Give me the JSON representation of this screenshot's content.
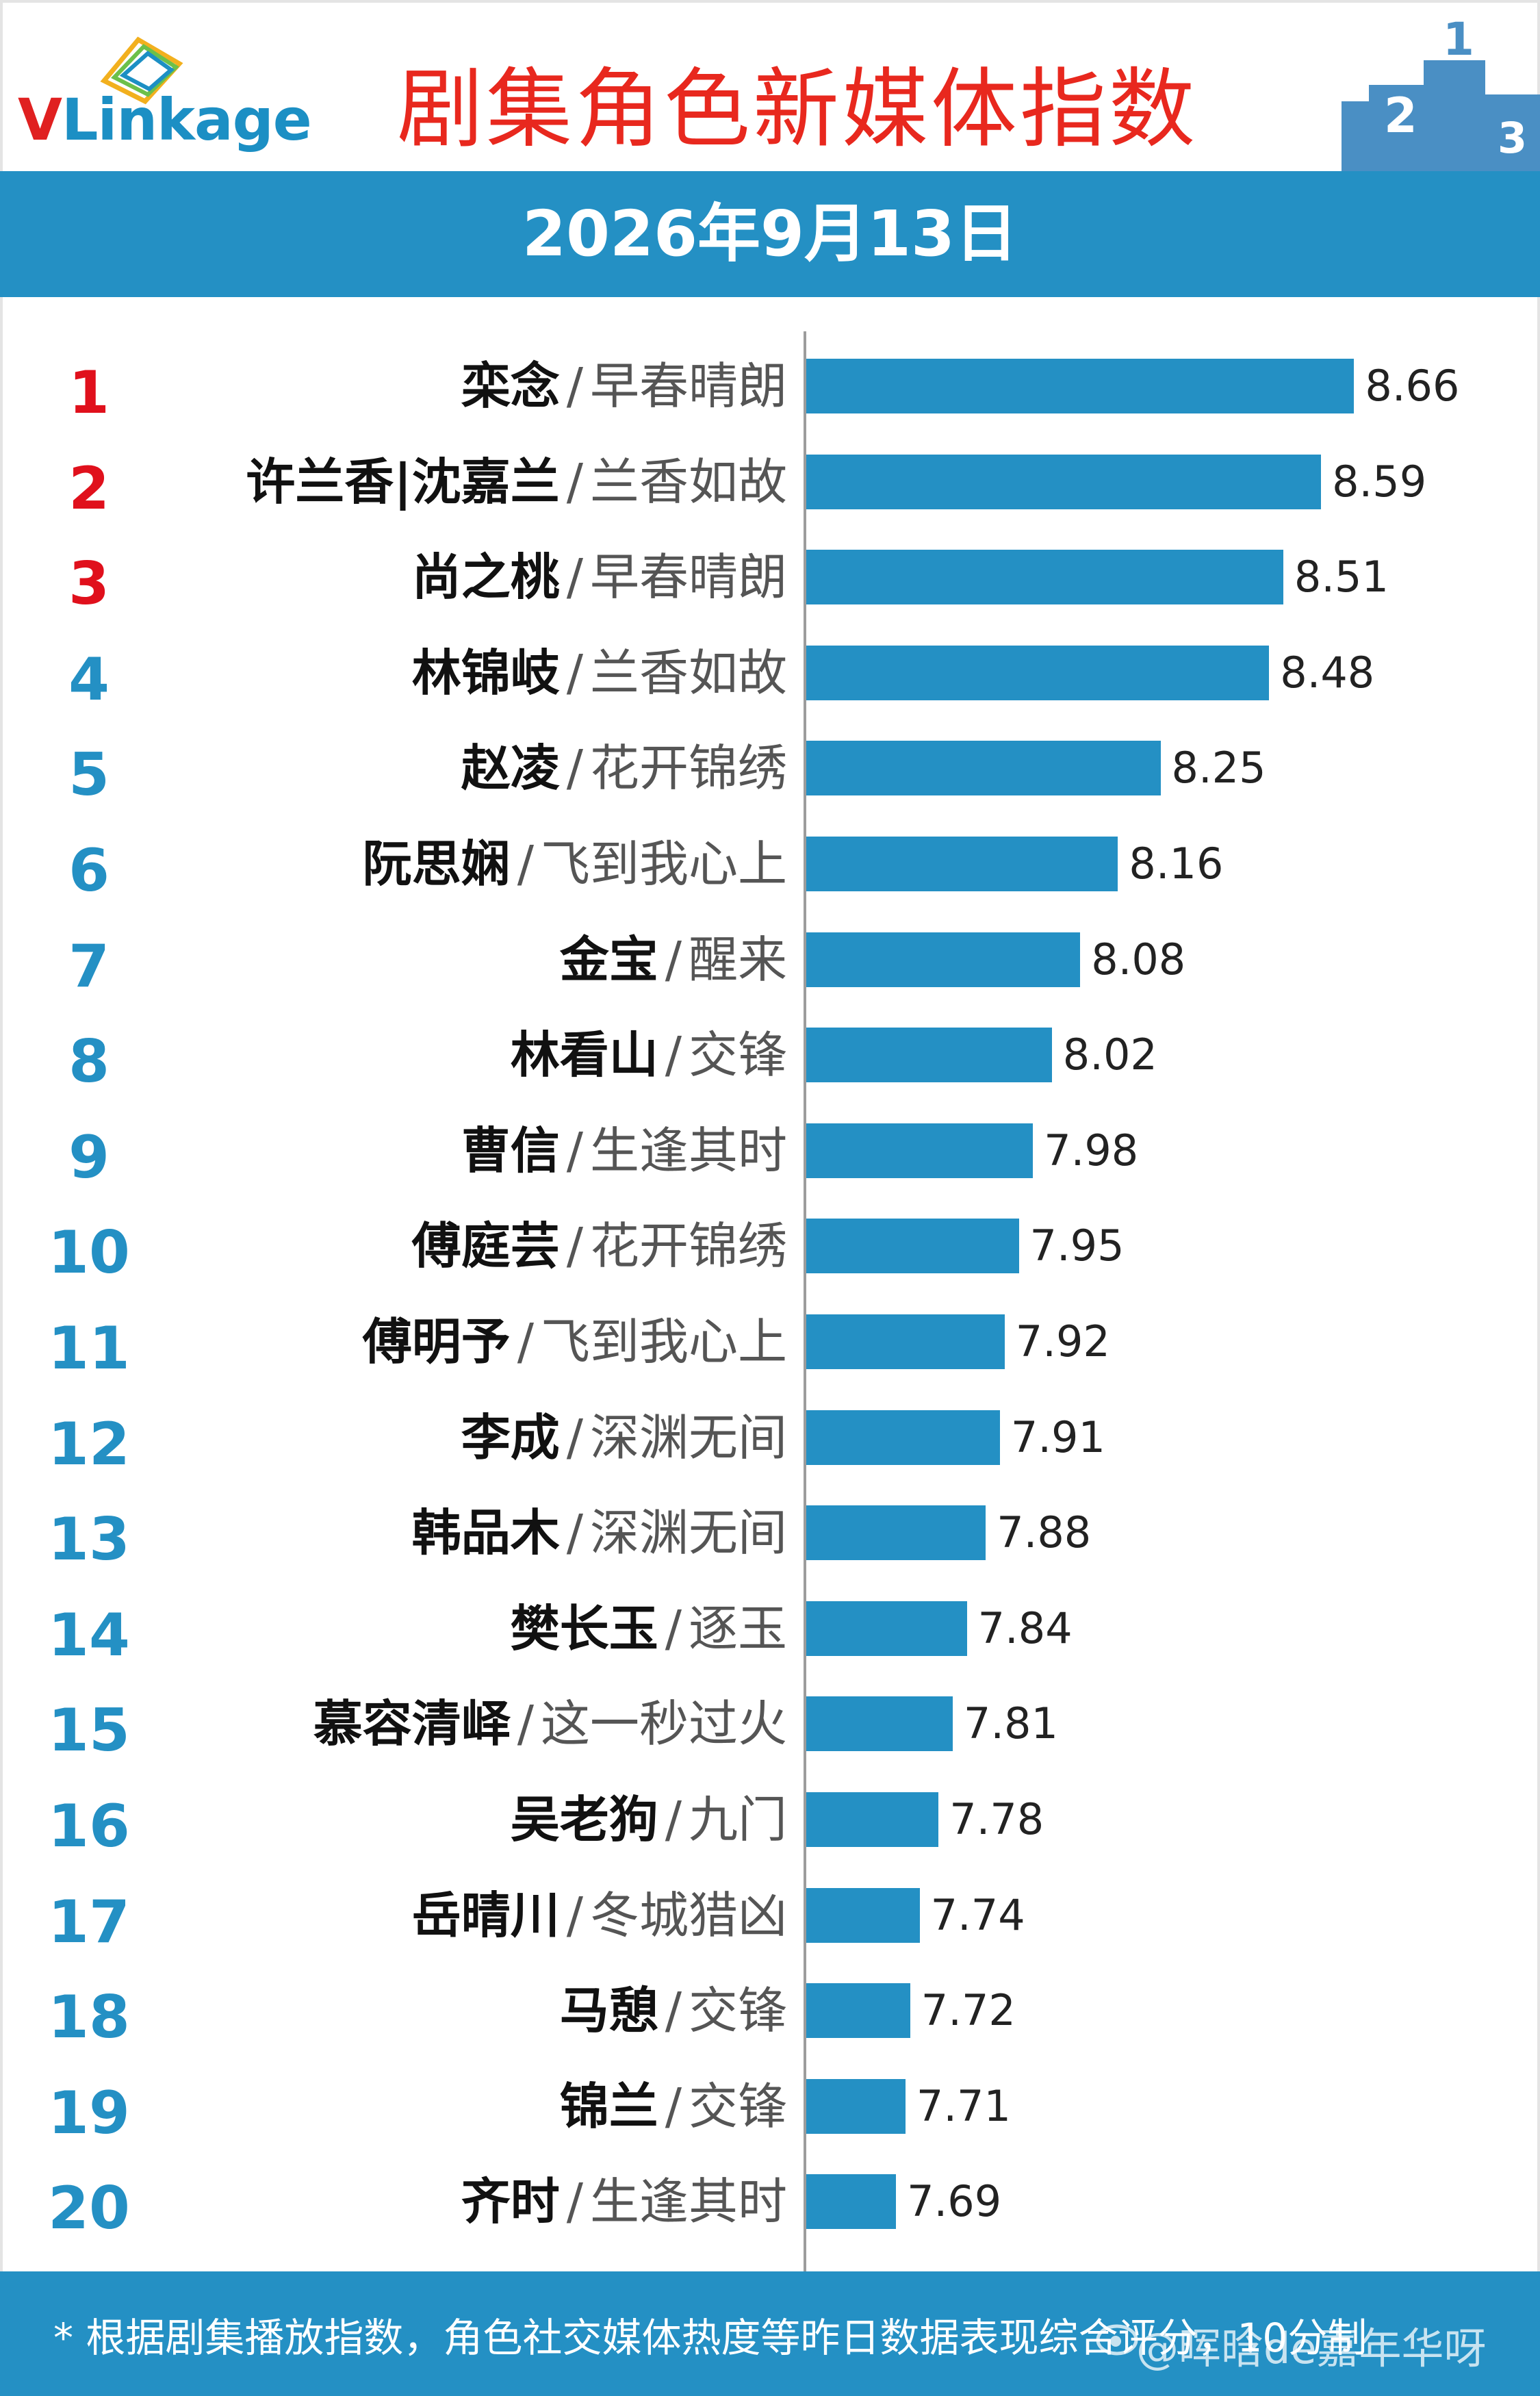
{
  "header": {
    "logo_text": "VLinkage",
    "title": "剧集角色新媒体指数",
    "date": "2026年9月13日"
  },
  "footer": {
    "note": "* 根据剧集播放指数，角色社交媒体热度等昨日数据表现综合评分，10分制",
    "watermark": "@晖晗de嘉年华呀"
  },
  "colors": {
    "bar": "#2490c4",
    "top_rank": "#e0101c",
    "rank": "#2490c4",
    "title": "#e8281e"
  },
  "chart_data": {
    "type": "bar",
    "orientation": "horizontal",
    "title": "剧集角色新媒体指数",
    "ranks": [
      "1",
      "2",
      "3",
      "4",
      "5",
      "6",
      "7",
      "8",
      "9",
      "10",
      "11",
      "12",
      "13",
      "14",
      "15",
      "16",
      "17",
      "18",
      "19",
      "20"
    ],
    "names": [
      "栾念",
      "许兰香|沈嘉兰",
      "尚之桃",
      "林锦岐",
      "赵凌",
      "阮思娴",
      "金宝",
      "林看山",
      "曹信",
      "傅庭芸",
      "傅明予",
      "李成",
      "韩品木",
      "樊长玉",
      "慕容清峄",
      "吴老狗",
      "岳晴川",
      "马憩",
      "锦兰",
      "齐时"
    ],
    "dramas": [
      "早春晴朗",
      "兰香如故",
      "早春晴朗",
      "兰香如故",
      "花开锦绣",
      "飞到我心上",
      "醒来",
      "交锋",
      "生逢其时",
      "花开锦绣",
      "飞到我心上",
      "深渊无间",
      "深渊无间",
      "逐玉",
      "这一秒过火",
      "九门",
      "冬城猎凶",
      "交锋",
      "交锋",
      "生逢其时"
    ],
    "values": [
      8.66,
      8.59,
      8.51,
      8.48,
      8.25,
      8.16,
      8.08,
      8.02,
      7.98,
      7.95,
      7.92,
      7.91,
      7.88,
      7.84,
      7.81,
      7.78,
      7.74,
      7.72,
      7.71,
      7.69
    ],
    "value_labels": [
      "8.66",
      "8.59",
      "8.51",
      "8.48",
      "8.25",
      "8.16",
      "8.08",
      "8.02",
      "7.98",
      "7.95",
      "7.92",
      "7.91",
      "7.88",
      "7.84",
      "7.81",
      "7.78",
      "7.74",
      "7.72",
      "7.71",
      "7.69"
    ],
    "separator": "/",
    "top_ranks_highlighted": 3
  }
}
